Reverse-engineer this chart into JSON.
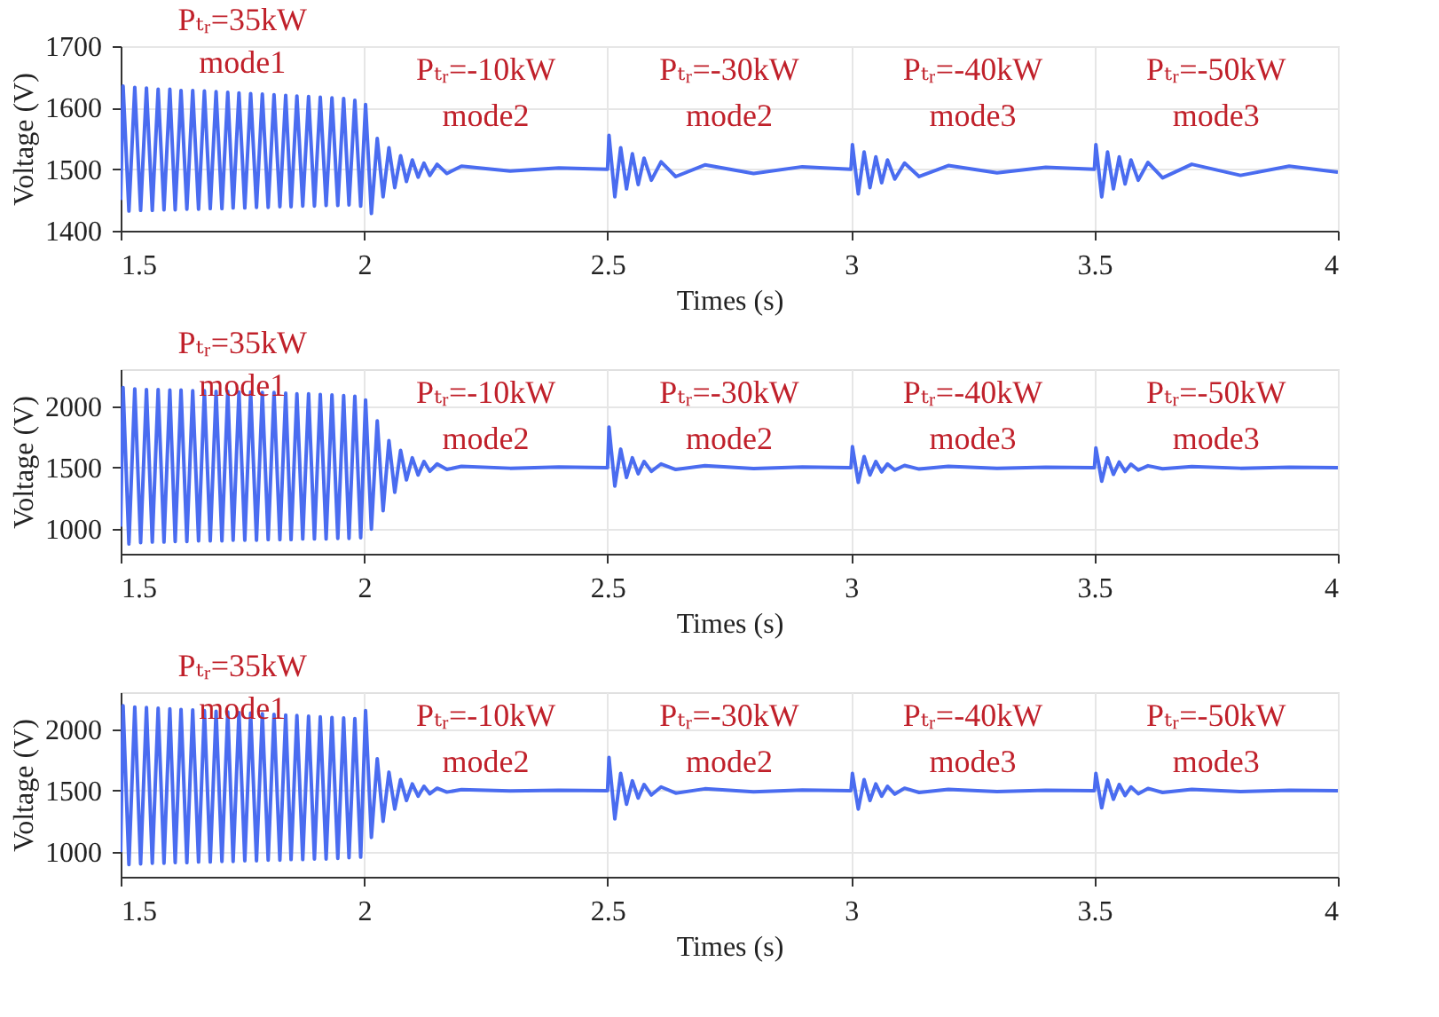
{
  "chart_data": [
    {
      "type": "line",
      "xlabel": "Times (s)",
      "ylabel": "Voltage (V)",
      "xlim": [
        1.5,
        4
      ],
      "xticks": [
        1.5,
        2,
        2.5,
        3,
        3.5,
        4
      ],
      "ylim": [
        1400,
        1700
      ],
      "yticks": [
        1400,
        1500,
        1600,
        1700
      ],
      "grid": true,
      "marker": "none",
      "line_style": "solid",
      "annotations": [
        "Pₜᵣ=35kW",
        "mode1",
        "Pₜᵣ=-10kW",
        "mode2",
        "Pₜᵣ=-30kW",
        "mode2",
        "Pₜᵣ=-40kW",
        "mode3",
        "Pₜᵣ=-50kW",
        "mode3"
      ],
      "x": [
        1.5,
        1.505,
        1.517,
        1.529,
        1.541,
        1.553,
        1.565,
        1.577,
        1.589,
        1.601,
        1.612,
        1.624,
        1.636,
        1.648,
        1.66,
        1.672,
        1.684,
        1.696,
        1.708,
        1.72,
        1.731,
        1.743,
        1.755,
        1.767,
        1.779,
        1.791,
        1.803,
        1.815,
        1.827,
        1.839,
        1.85,
        1.862,
        1.874,
        1.886,
        1.898,
        1.91,
        1.922,
        1.934,
        1.946,
        1.958,
        1.969,
        1.981,
        1.993,
        2.003,
        2.015,
        2.027,
        2.039,
        2.051,
        2.063,
        2.075,
        2.087,
        2.099,
        2.111,
        2.123,
        2.135,
        2.15,
        2.17,
        2.2,
        2.3,
        2.4,
        2.5,
        2.503,
        2.515,
        2.527,
        2.539,
        2.551,
        2.563,
        2.575,
        2.59,
        2.61,
        2.64,
        2.7,
        2.8,
        2.9,
        3.0,
        3.003,
        3.015,
        3.027,
        3.039,
        3.051,
        3.063,
        3.075,
        3.09,
        3.11,
        3.14,
        3.2,
        3.3,
        3.4,
        3.5,
        3.503,
        3.515,
        3.527,
        3.539,
        3.551,
        3.563,
        3.575,
        3.59,
        3.61,
        3.64,
        3.7,
        3.8,
        3.9,
        4.0
      ],
      "series": [
        {
          "color": "#4a6cf0",
          "values": [
            1450,
            1635,
            1432,
            1633,
            1433,
            1632,
            1433,
            1630,
            1434,
            1630,
            1434,
            1628,
            1435,
            1628,
            1435,
            1627,
            1436,
            1626,
            1436,
            1625,
            1437,
            1624,
            1437,
            1623,
            1438,
            1622,
            1438,
            1621,
            1439,
            1620,
            1439,
            1619,
            1440,
            1618,
            1440,
            1617,
            1441,
            1616,
            1441,
            1615,
            1442,
            1612,
            1440,
            1605,
            1428,
            1550,
            1455,
            1535,
            1470,
            1522,
            1480,
            1515,
            1487,
            1510,
            1490,
            1508,
            1493,
            1505,
            1497,
            1502,
            1500,
            1555,
            1455,
            1535,
            1468,
            1525,
            1475,
            1518,
            1482,
            1512,
            1488,
            1507,
            1493,
            1504,
            1500,
            1540,
            1460,
            1528,
            1470,
            1520,
            1478,
            1515,
            1484,
            1510,
            1488,
            1506,
            1494,
            1503,
            1500,
            1540,
            1455,
            1528,
            1468,
            1520,
            1476,
            1515,
            1482,
            1511,
            1486,
            1508,
            1490,
            1505,
            1495
          ]
        }
      ]
    },
    {
      "type": "line",
      "xlabel": "Times (s)",
      "ylabel": "Voltage (V)",
      "xlim": [
        1.5,
        4
      ],
      "xticks": [
        1.5,
        2,
        2.5,
        3,
        3.5,
        4
      ],
      "ylim": [
        800,
        2300
      ],
      "yticks": [
        1000,
        1500,
        2000
      ],
      "grid": true,
      "marker": "none",
      "line_style": "solid",
      "annotations": [
        "Pₜᵣ=35kW",
        "mode1",
        "Pₜᵣ=-10kW",
        "mode2",
        "Pₜᵣ=-30kW",
        "mode2",
        "Pₜᵣ=-40kW",
        "mode3",
        "Pₜᵣ=-50kW",
        "mode3"
      ],
      "x": [
        1.5,
        1.505,
        1.517,
        1.529,
        1.541,
        1.553,
        1.565,
        1.577,
        1.589,
        1.601,
        1.612,
        1.624,
        1.636,
        1.648,
        1.66,
        1.672,
        1.684,
        1.696,
        1.708,
        1.72,
        1.731,
        1.743,
        1.755,
        1.767,
        1.779,
        1.791,
        1.803,
        1.815,
        1.827,
        1.839,
        1.85,
        1.862,
        1.874,
        1.886,
        1.898,
        1.91,
        1.922,
        1.934,
        1.946,
        1.958,
        1.969,
        1.981,
        1.993,
        2.003,
        2.015,
        2.027,
        2.039,
        2.051,
        2.063,
        2.075,
        2.087,
        2.099,
        2.111,
        2.123,
        2.135,
        2.15,
        2.17,
        2.2,
        2.3,
        2.4,
        2.5,
        2.503,
        2.515,
        2.527,
        2.539,
        2.551,
        2.563,
        2.575,
        2.59,
        2.61,
        2.64,
        2.7,
        2.8,
        2.9,
        3.0,
        3.003,
        3.015,
        3.027,
        3.039,
        3.051,
        3.063,
        3.075,
        3.09,
        3.11,
        3.14,
        3.2,
        3.3,
        3.4,
        3.5,
        3.503,
        3.515,
        3.527,
        3.539,
        3.551,
        3.563,
        3.575,
        3.59,
        3.61,
        3.64,
        3.7,
        3.8,
        3.9,
        4.0
      ],
      "series": [
        {
          "color": "#4a6cf0",
          "values": [
            1020,
            2150,
            880,
            2140,
            890,
            2135,
            895,
            2135,
            895,
            2130,
            900,
            2130,
            900,
            2125,
            905,
            2125,
            905,
            2120,
            905,
            2120,
            910,
            2115,
            910,
            2115,
            910,
            2110,
            915,
            2110,
            915,
            2105,
            915,
            2100,
            920,
            2100,
            920,
            2095,
            920,
            2090,
            925,
            2085,
            925,
            2080,
            930,
            2050,
            1000,
            1880,
            1150,
            1720,
            1300,
            1640,
            1400,
            1580,
            1440,
            1550,
            1470,
            1530,
            1485,
            1510,
            1495,
            1505,
            1500,
            1830,
            1350,
            1650,
            1420,
            1580,
            1450,
            1550,
            1470,
            1530,
            1485,
            1515,
            1492,
            1505,
            1500,
            1670,
            1380,
            1590,
            1440,
            1550,
            1465,
            1530,
            1480,
            1518,
            1488,
            1510,
            1494,
            1504,
            1500,
            1660,
            1390,
            1580,
            1445,
            1545,
            1468,
            1528,
            1480,
            1515,
            1490,
            1508,
            1495,
            1503,
            1500
          ]
        }
      ]
    },
    {
      "type": "line",
      "xlabel": "Times (s)",
      "ylabel": "Voltage (V)",
      "xlim": [
        1.5,
        4
      ],
      "xticks": [
        1.5,
        2,
        2.5,
        3,
        3.5,
        4
      ],
      "ylim": [
        800,
        2300
      ],
      "yticks": [
        1000,
        1500,
        2000
      ],
      "grid": true,
      "marker": "none",
      "line_style": "solid",
      "annotations": [
        "Pₜᵣ=35kW",
        "mode1",
        "Pₜᵣ=-10kW",
        "mode2",
        "Pₜᵣ=-30kW",
        "mode2",
        "Pₜᵣ=-40kW",
        "mode3",
        "Pₜᵣ=-50kW",
        "mode3"
      ],
      "x": [
        1.5,
        1.505,
        1.517,
        1.529,
        1.541,
        1.553,
        1.565,
        1.577,
        1.589,
        1.601,
        1.612,
        1.624,
        1.636,
        1.648,
        1.66,
        1.672,
        1.684,
        1.696,
        1.708,
        1.72,
        1.731,
        1.743,
        1.755,
        1.767,
        1.779,
        1.791,
        1.803,
        1.815,
        1.827,
        1.839,
        1.85,
        1.862,
        1.874,
        1.886,
        1.898,
        1.91,
        1.922,
        1.934,
        1.946,
        1.958,
        1.969,
        1.981,
        1.993,
        2.003,
        2.015,
        2.027,
        2.039,
        2.051,
        2.063,
        2.075,
        2.087,
        2.099,
        2.111,
        2.123,
        2.135,
        2.15,
        2.17,
        2.2,
        2.3,
        2.4,
        2.5,
        2.503,
        2.515,
        2.527,
        2.539,
        2.551,
        2.563,
        2.575,
        2.59,
        2.61,
        2.64,
        2.7,
        2.8,
        2.9,
        3.0,
        3.003,
        3.015,
        3.027,
        3.039,
        3.051,
        3.063,
        3.075,
        3.09,
        3.11,
        3.14,
        3.2,
        3.3,
        3.4,
        3.5,
        3.503,
        3.515,
        3.527,
        3.539,
        3.551,
        3.563,
        3.575,
        3.59,
        3.61,
        3.64,
        3.7,
        3.8,
        3.9,
        4.0
      ],
      "series": [
        {
          "color": "#4a6cf0",
          "values": [
            1000,
            2190,
            900,
            2180,
            905,
            2175,
            910,
            2170,
            910,
            2165,
            915,
            2160,
            915,
            2155,
            920,
            2150,
            920,
            2145,
            925,
            2140,
            925,
            2135,
            930,
            2130,
            930,
            2125,
            935,
            2120,
            935,
            2115,
            940,
            2110,
            940,
            2105,
            945,
            2100,
            945,
            2095,
            950,
            2090,
            955,
            2085,
            960,
            2150,
            1120,
            1760,
            1250,
            1650,
            1350,
            1590,
            1420,
            1555,
            1455,
            1535,
            1475,
            1520,
            1488,
            1508,
            1497,
            1503,
            1500,
            1770,
            1270,
            1640,
            1390,
            1580,
            1440,
            1550,
            1465,
            1530,
            1480,
            1515,
            1490,
            1505,
            1500,
            1640,
            1350,
            1590,
            1420,
            1555,
            1455,
            1535,
            1472,
            1520,
            1485,
            1510,
            1492,
            1504,
            1500,
            1640,
            1360,
            1585,
            1430,
            1550,
            1460,
            1530,
            1475,
            1518,
            1485,
            1510,
            1493,
            1503,
            1500
          ]
        }
      ]
    }
  ]
}
